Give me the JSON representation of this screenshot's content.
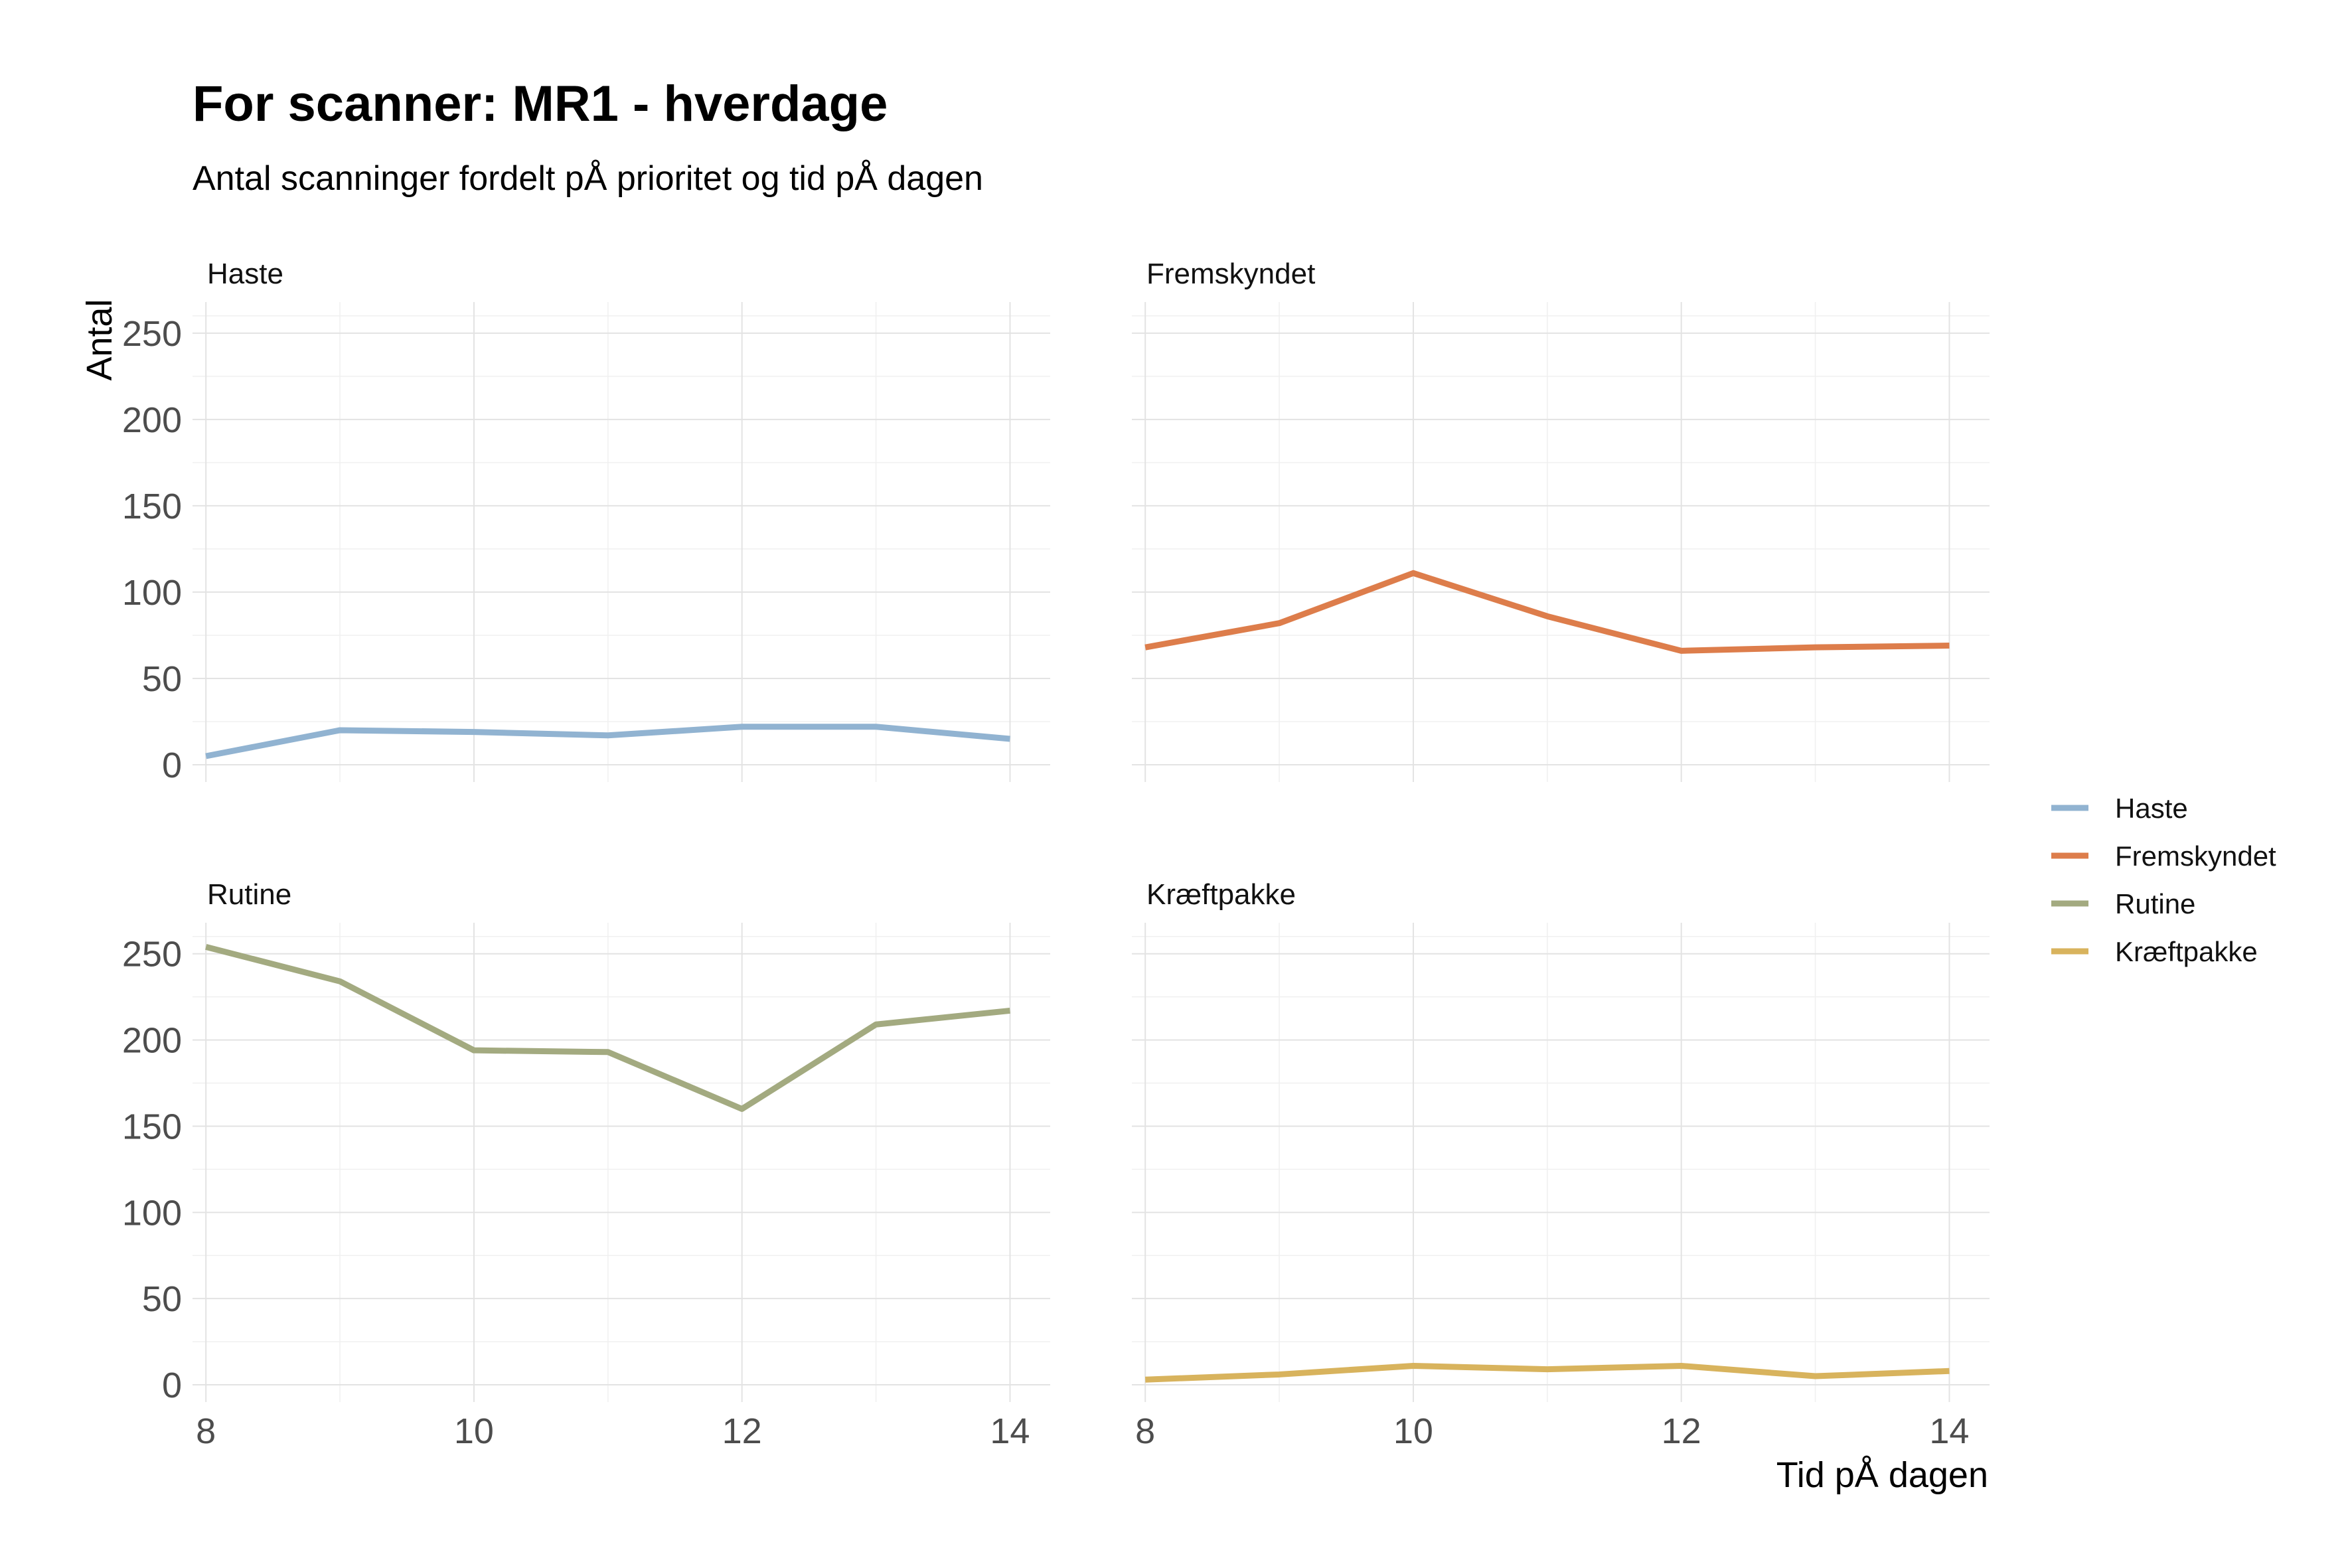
{
  "chart_data": {
    "type": "line",
    "title": "For scanner: MR1 - hverdage",
    "subtitle": "Antal scanninger fordelt pÅ prioritet og tid pÅ dagen",
    "xlabel": "Tid pÅ dagen",
    "ylabel": "Antal",
    "x": [
      8,
      9,
      10,
      11,
      12,
      13,
      14
    ],
    "xlim": [
      7.9,
      14.3
    ],
    "ylim": [
      -10,
      268
    ],
    "x_ticks": [
      8,
      10,
      12,
      14
    ],
    "y_ticks": [
      0,
      50,
      100,
      150,
      200,
      250
    ],
    "grid": true,
    "legend_position": "right",
    "panels": [
      {
        "name": "Haste",
        "color": "#91b3d1",
        "values": [
          5,
          20,
          19,
          17,
          22,
          22,
          15
        ]
      },
      {
        "name": "Fremskyndet",
        "color": "#dd7d4b",
        "values": [
          68,
          82,
          111,
          86,
          66,
          68,
          69
        ]
      },
      {
        "name": "Rutine",
        "color": "#a3aa80",
        "values": [
          254,
          234,
          194,
          193,
          160,
          209,
          217
        ]
      },
      {
        "name": "Kræftpakke",
        "color": "#d8b35d",
        "values": [
          3,
          6,
          11,
          9,
          11,
          5,
          8
        ]
      }
    ]
  }
}
